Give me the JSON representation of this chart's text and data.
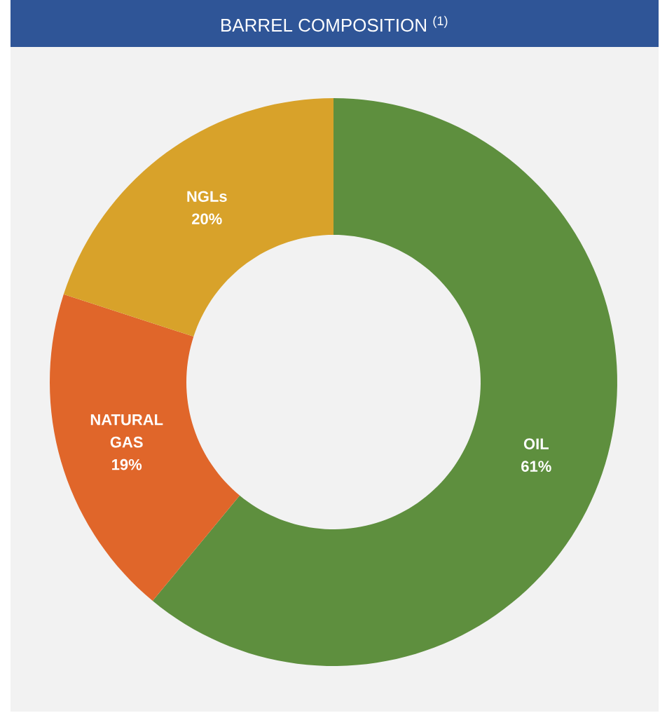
{
  "chart_data": {
    "type": "donut",
    "title": "BARREL COMPOSITION $^{(1)}$",
    "categories": [
      "OIL",
      "NATURAL GAS",
      "NGLs"
    ],
    "values": [
      61,
      19,
      20
    ],
    "value_labels": [
      "61%",
      "19%",
      "20%"
    ],
    "colors": [
      "#5e8f3e",
      "#e0662a",
      "#d8a22a"
    ]
  }
}
